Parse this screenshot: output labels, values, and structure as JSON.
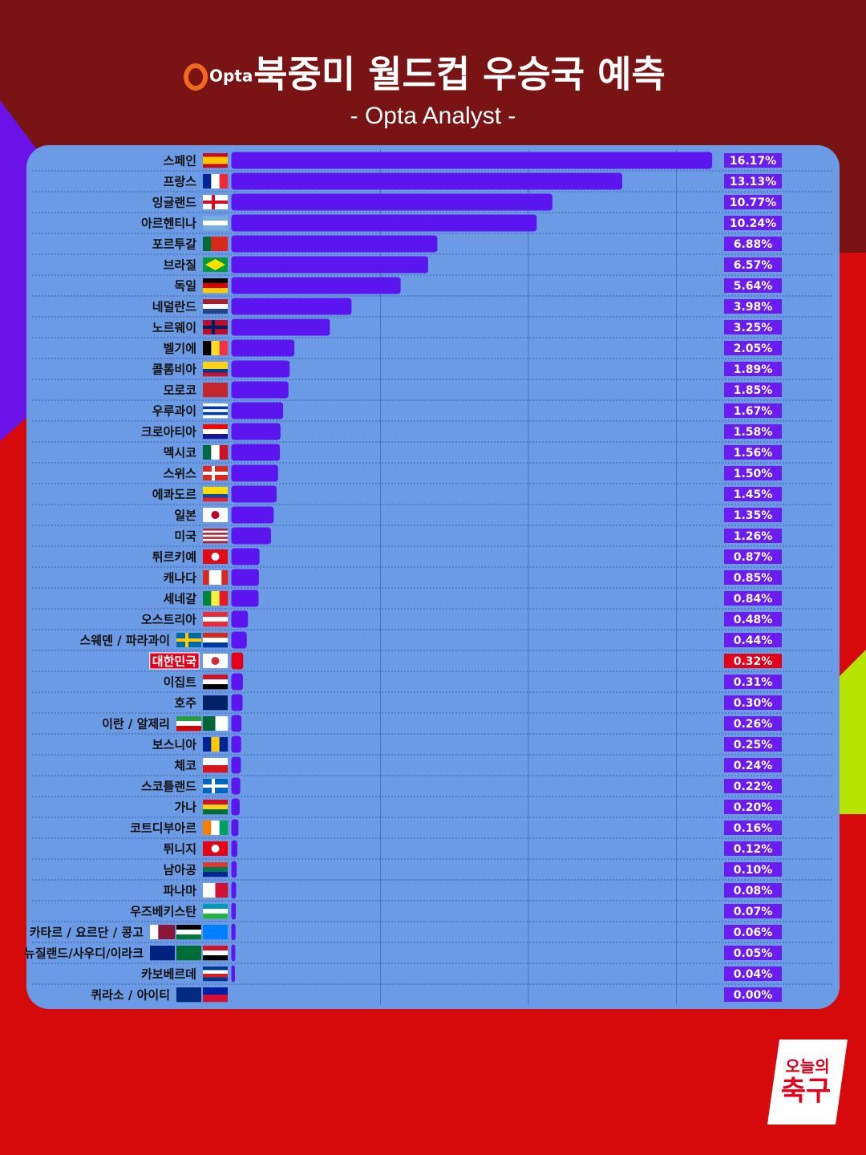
{
  "chart_data": {
    "type": "bar",
    "orientation": "horizontal",
    "logo": "Opta",
    "title": "북중미 월드컵 우승국 예측",
    "subtitle": "- Opta Analyst -",
    "brand": [
      "오늘의",
      "축구"
    ],
    "categories": [
      "스페인",
      "프랑스",
      "잉글랜드",
      "아르헨티나",
      "포르투갈",
      "브라질",
      "독일",
      "네덜란드",
      "노르웨이",
      "벨기에",
      "콜롬비아",
      "모로코",
      "우루과이",
      "크로아티아",
      "멕시코",
      "스위스",
      "에콰도르",
      "일본",
      "미국",
      "튀르키예",
      "캐나다",
      "세네갈",
      "오스트리아",
      "스웨덴 / 파라과이",
      "대한민국",
      "이집트",
      "호주",
      "이란 / 알제리",
      "보스니아",
      "체코",
      "스코틀랜드",
      "가나",
      "코트디부아르",
      "튀니지",
      "남아공",
      "파나마",
      "우즈베키스탄",
      "카타르 / 요르단 / 콩고",
      "뉴질랜드/사우디/이라크",
      "카보베르데",
      "퀴라소 / 아이티"
    ],
    "values": [
      16.17,
      13.13,
      10.77,
      10.24,
      6.88,
      6.57,
      5.64,
      3.98,
      3.25,
      2.05,
      1.89,
      1.85,
      1.67,
      1.58,
      1.56,
      1.5,
      1.45,
      1.35,
      1.26,
      0.87,
      0.85,
      0.84,
      0.48,
      0.44,
      0.32,
      0.31,
      0.3,
      0.26,
      0.25,
      0.24,
      0.22,
      0.2,
      0.16,
      0.12,
      0.1,
      0.08,
      0.07,
      0.06,
      0.05,
      0.04,
      0.0
    ],
    "value_labels": [
      "16.17%",
      "13.13%",
      "10.77%",
      "10.24%",
      "6.88%",
      "6.57%",
      "5.64%",
      "3.98%",
      "3.25%",
      "2.05%",
      "1.89%",
      "1.85%",
      "1.67%",
      "1.58%",
      "1.56%",
      "1.50%",
      "1.45%",
      "1.35%",
      "1.26%",
      "0.87%",
      "0.85%",
      "0.84%",
      "0.48%",
      "0.44%",
      "0.32%",
      "0.31%",
      "0.30%",
      "0.26%",
      "0.25%",
      "0.24%",
      "0.22%",
      "0.20%",
      "0.16%",
      "0.12%",
      "0.10%",
      "0.08%",
      "0.07%",
      "0.06%",
      "0.05%",
      "0.04%",
      "0.00%"
    ],
    "color": "#5b16f0",
    "colors": [
      "#5b16f0",
      "#5b16f0",
      "#5b16f0",
      "#5b16f0",
      "#5b16f0",
      "#5b16f0",
      "#5b16f0",
      "#5b16f0",
      "#5b16f0",
      "#5b16f0",
      "#5b16f0",
      "#5b16f0",
      "#5b16f0",
      "#5b16f0",
      "#5b16f0",
      "#5b16f0",
      "#5b16f0",
      "#5b16f0",
      "#5b16f0",
      "#5b16f0",
      "#5b16f0",
      "#5b16f0",
      "#5b16f0",
      "#5b16f0",
      "#e3001b",
      "#5b16f0",
      "#5b16f0",
      "#5b16f0",
      "#5b16f0",
      "#5b16f0",
      "#5b16f0",
      "#5b16f0",
      "#5b16f0",
      "#5b16f0",
      "#5b16f0",
      "#5b16f0",
      "#5b16f0",
      "#5b16f0",
      "#5b16f0",
      "#5b16f0",
      "#5b16f0"
    ],
    "xlim": [
      0,
      20
    ],
    "xticks": [
      5,
      10,
      15
    ],
    "grid": true
  }
}
